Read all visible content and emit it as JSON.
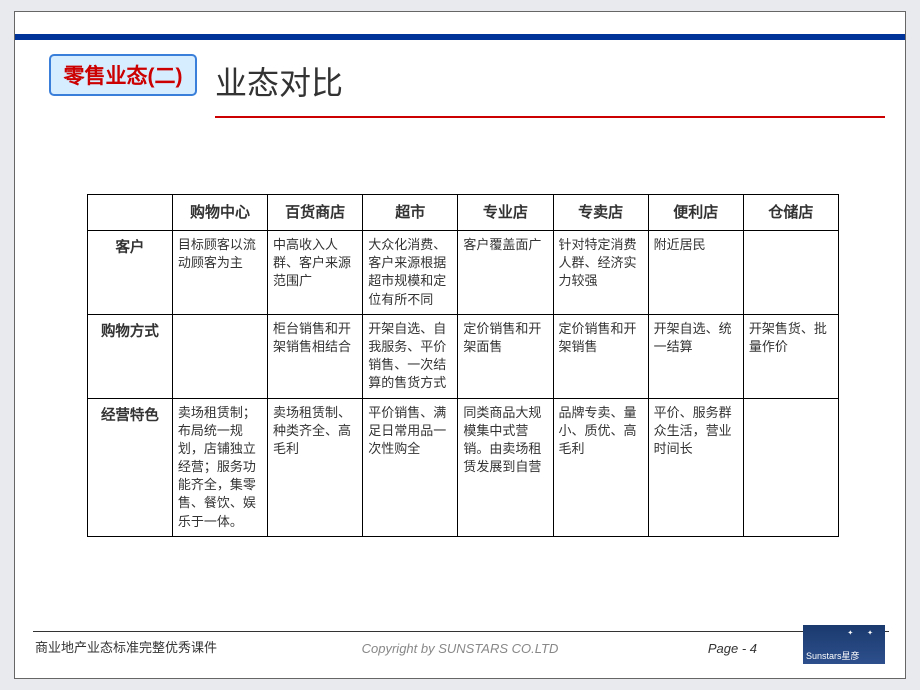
{
  "colors": {
    "topbar": "#003399",
    "underline": "#cc0000",
    "badge_bg": "#d6ecff",
    "badge_border": "#3a7fd9",
    "badge_text": "#cc0000",
    "logo_bg": "#1a3a6e"
  },
  "badge": "零售业态(二)",
  "title": "业态对比",
  "table": {
    "headers": [
      "",
      "购物中心",
      "百货商店",
      "超市",
      "专业店",
      "专卖店",
      "便利店",
      "仓储店"
    ],
    "rows": [
      {
        "label": "客户",
        "cells": [
          "目标顾客以流动顾客为主",
          "中高收入人群、客户来源范围广",
          "大众化消费、客户来源根据超市规模和定位有所不同",
          "客户覆盖面广",
          "针对特定消费人群、经济实力较强",
          "附近居民",
          ""
        ]
      },
      {
        "label": "购物方式",
        "cells": [
          "",
          "柜台销售和开架销售相结合",
          "开架自选、自我服务、平价销售、一次结算的售货方式",
          "定价销售和开架面售",
          "定价销售和开架销售",
          "开架自选、统一结算",
          "开架售货、批量作价"
        ]
      },
      {
        "label": "经营特色",
        "cells": [
          "卖场租赁制；布局统一规划，店铺独立经营；服务功能齐全，集零售、餐饮、娱乐于一体。",
          "卖场租赁制、种类齐全、高毛利",
          "平价销售、满足日常用品一次性购全",
          "同类商品大规模集中式营销。由卖场租赁发展到自营",
          "品牌专卖、量小、质优、高毛利",
          "平价、服务群众生活，营业时间长",
          ""
        ]
      }
    ]
  },
  "footer": {
    "left": "商业地产业态标准完整优秀课件",
    "center": "Copyright by SUNSTARS CO.LTD",
    "page_prefix": "Page  - ",
    "page_num": "4",
    "logo_text": "Sunstars星彦"
  }
}
